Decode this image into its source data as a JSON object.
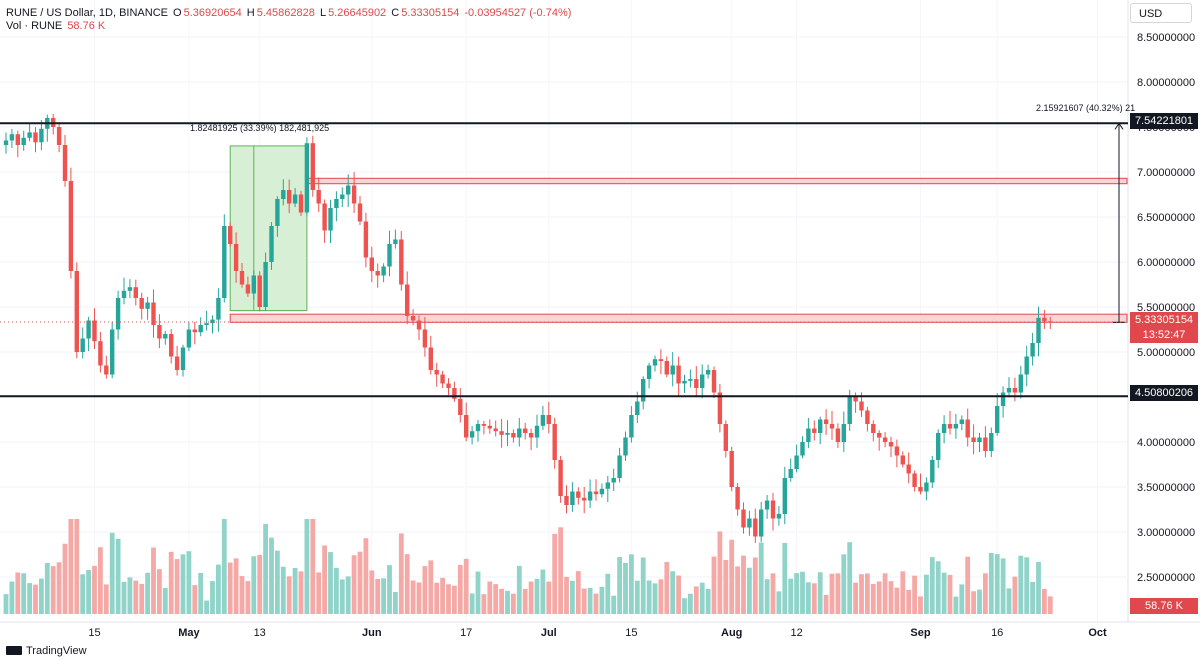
{
  "header": {
    "symbol": "RUNE / US Dollar, 1D, BINANCE",
    "open_label": "O",
    "open": "5.36920654",
    "high_label": "H",
    "high": "5.45862828",
    "low_label": "L",
    "low": "5.26645902",
    "close_label": "C",
    "close": "5.33305154",
    "change": "-0.03954527 (-0.74%)",
    "vol_label": "Vol · RUNE",
    "vol_value": "58.76 K"
  },
  "currency_button": "USD",
  "price_tags": {
    "resistance": "7.54221801",
    "current": "5.33305154",
    "countdown": "13:52:47",
    "support": "4.50800206",
    "volume": "58.76 K"
  },
  "annotations": {
    "measure_left": "1.82481925 (33.39%) 182,481,925",
    "measure_right": "2.15921607 (40.32%) 21"
  },
  "branding": "TradingView",
  "colors": {
    "up": "#26a69a",
    "down": "#ef5350",
    "up_volume": "#8fd3c9",
    "down_volume": "#f4a9a6",
    "zone_fill": "#fbd4d4",
    "zone_border": "#e0484e",
    "measure_fill": "#d7efd4"
  },
  "chart_data": {
    "type": "candlestick",
    "ylim": [
      2.05,
      8.7
    ],
    "y_ticks": [
      8.5,
      8.0,
      7.5,
      7.0,
      6.5,
      6.0,
      5.5,
      5.0,
      4.5,
      4.0,
      3.5,
      3.0,
      2.5
    ],
    "y_tick_labels": [
      "8.50000000",
      "8.00000000",
      "7.50000000",
      "7.00000000",
      "6.50000000",
      "6.00000000",
      "5.50000000",
      "5.00000000",
      "4.50000000",
      "4.00000000",
      "3.50000000",
      "3.00000000",
      "2.50000000"
    ],
    "x_labels": [
      {
        "label": "15",
        "day": 15
      },
      {
        "label": "May",
        "day": 31
      },
      {
        "label": "13",
        "day": 43
      },
      {
        "label": "Jun",
        "day": 62
      },
      {
        "label": "17",
        "day": 78
      },
      {
        "label": "Jul",
        "day": 92
      },
      {
        "label": "15",
        "day": 106
      },
      {
        "label": "Aug",
        "day": 123
      },
      {
        "label": "12",
        "day": 134
      },
      {
        "label": "Sep",
        "day": 155
      },
      {
        "label": "16",
        "day": 168
      },
      {
        "label": "Oct",
        "day": 185
      }
    ],
    "horizontal_lines": [
      7.54221801,
      4.50800206
    ],
    "zones": [
      {
        "from_day": 41,
        "to_day": 190,
        "low": 6.87,
        "high": 6.93
      },
      {
        "from_day": 38,
        "to_day": 190,
        "low": 5.33,
        "high": 5.42
      }
    ],
    "measure_left": {
      "from_day": 38,
      "to_day": 51,
      "low": 5.46,
      "high": 7.29
    },
    "measure_right": {
      "day": 190,
      "low": 5.33,
      "high": 7.54
    },
    "current_price": 5.33305154,
    "close": [
      7.35,
      7.42,
      7.3,
      7.38,
      7.44,
      7.33,
      7.48,
      7.6,
      7.5,
      7.3,
      6.9,
      5.9,
      5.0,
      5.15,
      5.35,
      5.12,
      4.85,
      4.75,
      5.25,
      5.6,
      5.68,
      5.72,
      5.6,
      5.48,
      5.55,
      5.3,
      5.15,
      5.2,
      4.95,
      4.8,
      5.05,
      5.25,
      5.22,
      5.3,
      5.32,
      5.36,
      5.6,
      6.4,
      6.2,
      5.9,
      5.75,
      5.65,
      5.85,
      5.5,
      6.0,
      6.4,
      6.7,
      6.8,
      6.65,
      6.75,
      6.55,
      7.32,
      6.8,
      6.65,
      6.35,
      6.6,
      6.7,
      6.75,
      6.85,
      6.65,
      6.45,
      6.05,
      5.9,
      5.85,
      5.95,
      6.2,
      6.25,
      5.75,
      5.4,
      5.35,
      5.25,
      5.05,
      4.8,
      4.75,
      4.65,
      4.6,
      4.48,
      4.3,
      4.05,
      4.12,
      4.2,
      4.18,
      4.15,
      4.12,
      4.08,
      4.1,
      4.05,
      4.15,
      4.1,
      4.05,
      4.18,
      4.3,
      4.2,
      3.8,
      3.4,
      3.3,
      3.45,
      3.38,
      3.35,
      3.45,
      3.42,
      3.48,
      3.55,
      3.6,
      3.85,
      4.05,
      4.3,
      4.45,
      4.7,
      4.85,
      4.92,
      4.9,
      4.75,
      4.85,
      4.65,
      4.68,
      4.7,
      4.6,
      4.75,
      4.8,
      4.55,
      4.2,
      3.9,
      3.5,
      3.25,
      3.05,
      3.15,
      2.95,
      3.25,
      3.35,
      3.15,
      3.2,
      3.6,
      3.7,
      3.85,
      4.0,
      4.15,
      4.1,
      4.25,
      4.2,
      4.15,
      4.0,
      4.2,
      4.5,
      4.45,
      4.35,
      4.2,
      4.1,
      4.05,
      4.0,
      3.95,
      3.85,
      3.75,
      3.65,
      3.5,
      3.45,
      3.55,
      3.8,
      4.1,
      4.2,
      4.15,
      4.2,
      4.25,
      4.05,
      4.0,
      4.05,
      3.9,
      4.1,
      4.4,
      4.55,
      4.6,
      4.55,
      4.75,
      4.95,
      5.1,
      5.38,
      5.34,
      5.33
    ]
  }
}
